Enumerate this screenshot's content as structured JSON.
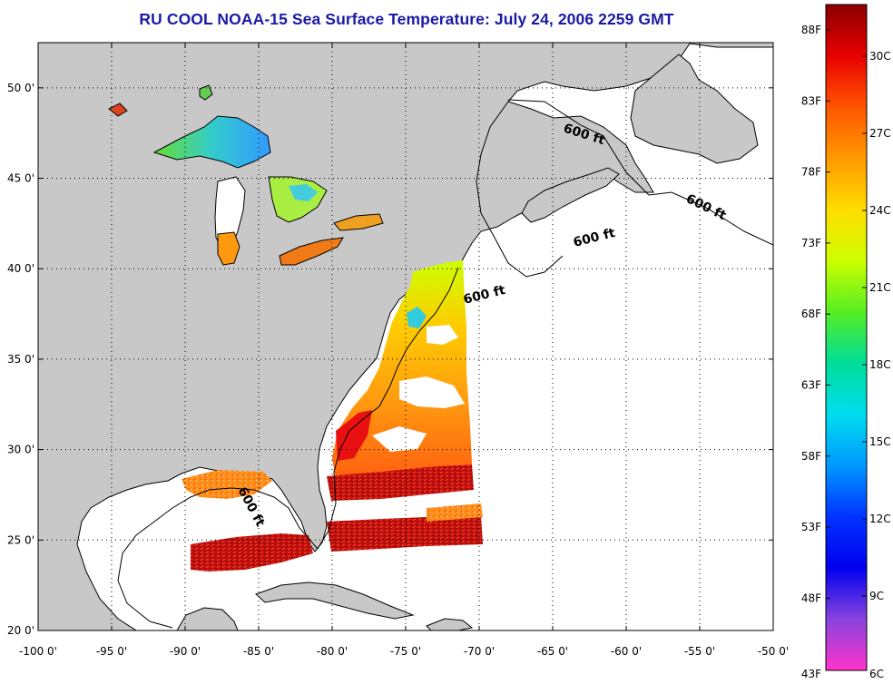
{
  "title": "RU COOL  NOAA-15  Sea Surface Temperature:  July 24, 2006 2259 GMT",
  "map": {
    "lon_range": [
      -100,
      -50
    ],
    "lat_range": [
      20,
      52.5
    ],
    "grid": "dotted",
    "lon_ticks": [
      -100,
      -95,
      -90,
      -85,
      -80,
      -75,
      -70,
      -65,
      -60,
      -55,
      -50
    ],
    "lat_ticks": [
      20,
      25,
      30,
      35,
      40,
      45,
      50
    ],
    "lon_tick_labels": [
      "-100 0'",
      "-95 0'",
      "-90 0'",
      "-85 0'",
      "-80 0'",
      "-75 0'",
      "-70 0'",
      "-65 0'",
      "-60 0'",
      "-55 0'",
      "-50 0'"
    ],
    "lat_tick_labels": [
      "20 0'",
      "25 0'",
      "30 0'",
      "35 0'",
      "40 0'",
      "45 0'",
      "50 0'"
    ],
    "land_color": "#c8c8c8",
    "water_color": "#ffffff",
    "contour_label": "600 ft",
    "contour_labels": [
      "600 ft",
      "600 ft",
      "600 ft",
      "600 ft",
      "600 ft"
    ]
  },
  "colorbar": {
    "f_labels": [
      "88F",
      "83F",
      "78F",
      "73F",
      "68F",
      "63F",
      "58F",
      "53F",
      "48F",
      "43F"
    ],
    "c_labels": [
      "30C",
      "27C",
      "24C",
      "21C",
      "18C",
      "15C",
      "12C",
      "9C",
      "6C"
    ],
    "colors_top_to_bottom": [
      "#8b0000",
      "#e80000",
      "#ff5500",
      "#ff9900",
      "#ffdd00",
      "#ccff00",
      "#55ee22",
      "#00dd99",
      "#00ddee",
      "#0099ff",
      "#0033ff",
      "#0000ee",
      "#8844dd",
      "#ff33cc"
    ]
  }
}
